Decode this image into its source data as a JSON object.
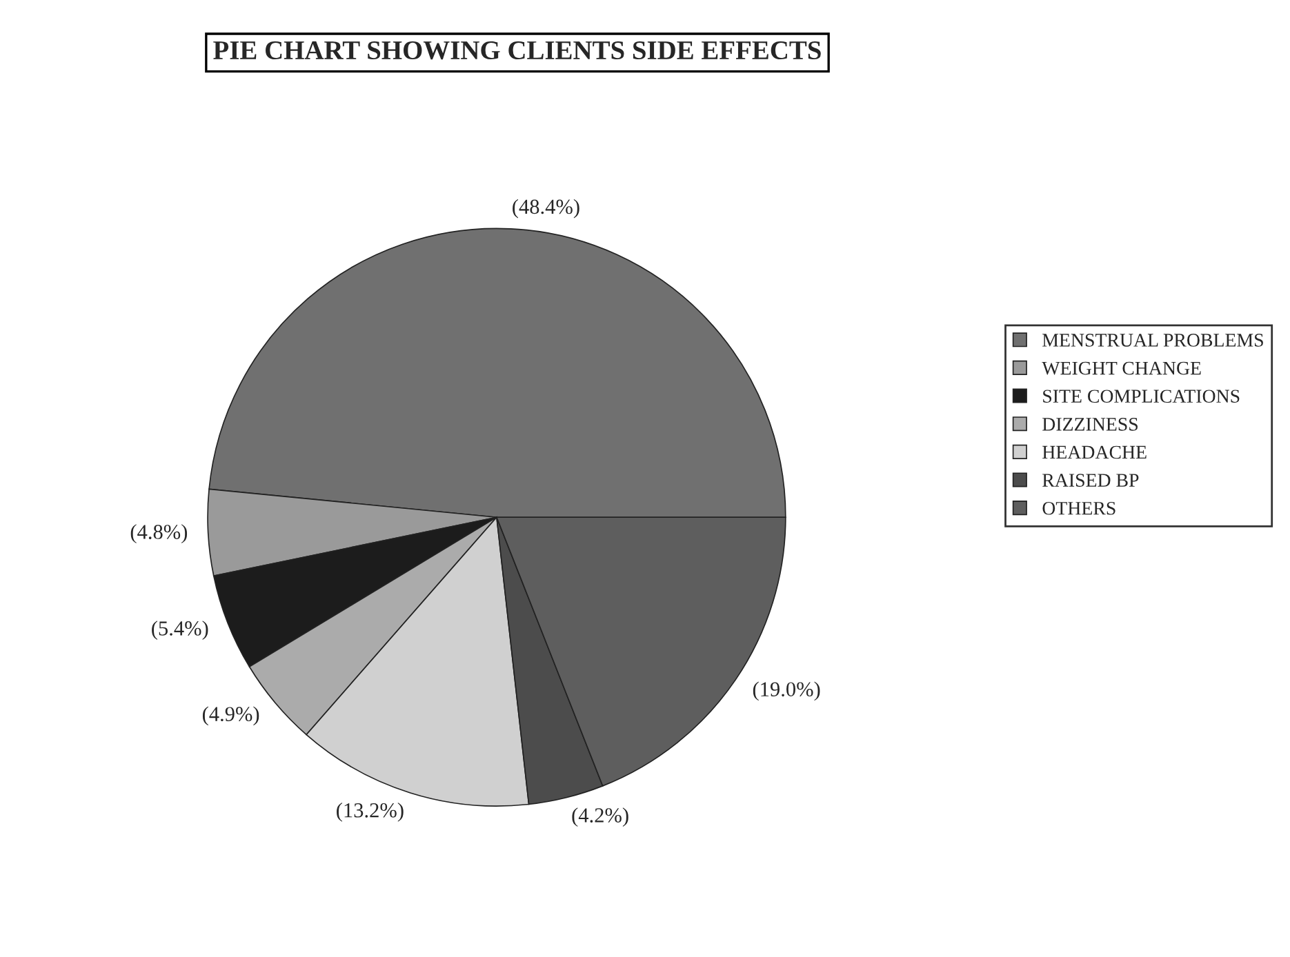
{
  "chart_data": {
    "type": "pie",
    "title": "PIE CHART SHOWING CLIENTS SIDE EFFECTS",
    "categories": [
      "MENSTRUAL PROBLEMS",
      "WEIGHT CHANGE",
      "SITE COMPLICATIONS",
      "DIZZINESS",
      "HEADACHE",
      "RAISED BP",
      "OTHERS"
    ],
    "values": [
      48.4,
      4.8,
      5.4,
      4.9,
      13.2,
      4.2,
      19.0
    ],
    "value_labels": [
      "(48.4%)",
      "(4.8%)",
      "(5.4%)",
      "(4.9%)",
      "(13.2%)",
      "(4.2%)",
      "(19.0%)"
    ],
    "colors": [
      "#707070",
      "#9a9a9a",
      "#1c1c1c",
      "#ababab",
      "#d0d0d0",
      "#4c4c4c",
      "#5e5e5e"
    ],
    "legend": "right"
  }
}
